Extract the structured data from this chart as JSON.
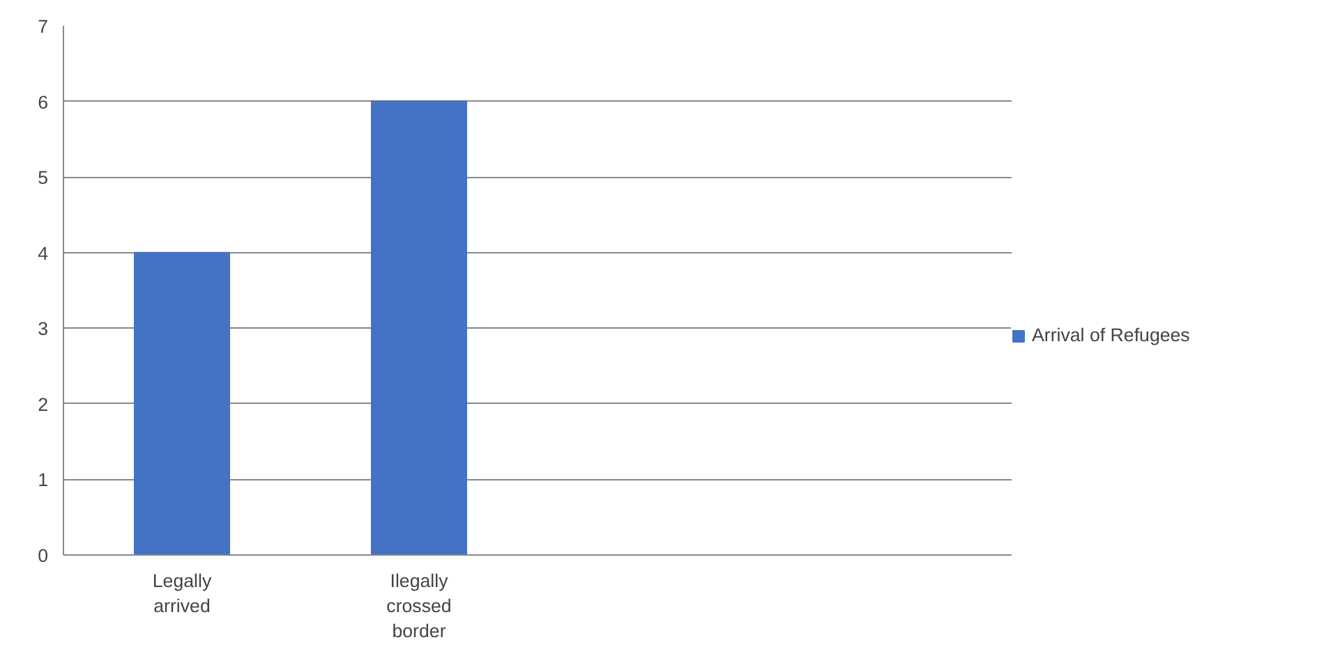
{
  "chart_data": {
    "type": "bar",
    "categories": [
      "Legally arrived",
      "Ilegally crossed border",
      null,
      null
    ],
    "series": [
      {
        "name": "Arrival of Refugees",
        "color": "#4472c4",
        "values": [
          4,
          6,
          null,
          null
        ]
      }
    ],
    "ylim": [
      0,
      7
    ],
    "yticks": [
      0,
      1,
      2,
      3,
      4,
      5,
      6,
      7
    ],
    "grid": "y",
    "legend": "right"
  }
}
